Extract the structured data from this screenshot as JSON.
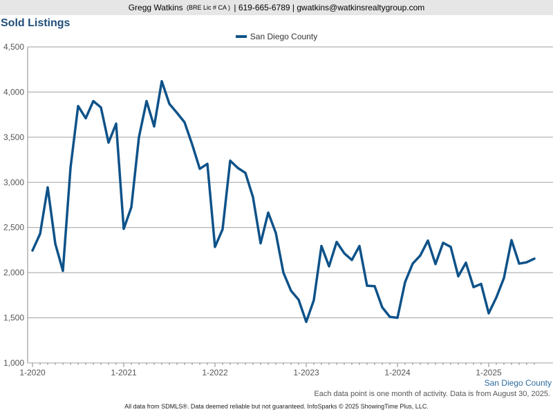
{
  "header": {
    "name": "Gregg Watkins",
    "license": "(BRE Lic # CA )",
    "separator1": "|",
    "phone": "619-665-6789",
    "separator2": "|",
    "email": "gwatkins@watkinsrealtygroup.com"
  },
  "colors": {
    "series": "#0e5289",
    "title": "#1f4e79",
    "grid": "#a0a0a0",
    "header_bg": "#e6e6e6"
  },
  "chart_data": {
    "type": "line",
    "title": "Sold Listings",
    "xlabel": "",
    "ylabel": "",
    "ylim": [
      1000,
      4500
    ],
    "yticks": [
      "1,000",
      "1,500",
      "2,000",
      "2,500",
      "3,000",
      "3,500",
      "4,000",
      "4,500"
    ],
    "xtick_labels": [
      "1-2020",
      "1-2021",
      "1-2022",
      "1-2023",
      "1-2024",
      "1-2025"
    ],
    "x_start": "2020-01",
    "x_end": "2025-07",
    "grid": true,
    "legend_position": "top-center",
    "series_label_position": "bottom-right",
    "series": [
      {
        "name": "San Diego County",
        "values": [
          2245,
          2430,
          2945,
          2320,
          2020,
          3160,
          3845,
          3710,
          3900,
          3830,
          3440,
          3650,
          2485,
          2725,
          3500,
          3900,
          3620,
          4120,
          3870,
          3770,
          3665,
          3420,
          3150,
          3205,
          2285,
          2480,
          3240,
          3160,
          3105,
          2835,
          2325,
          2665,
          2440,
          2000,
          1800,
          1700,
          1455,
          1695,
          2295,
          2070,
          2340,
          2215,
          2140,
          2295,
          1855,
          1850,
          1615,
          1510,
          1500,
          1895,
          2100,
          2190,
          2355,
          2095,
          2330,
          2285,
          1960,
          2110,
          1840,
          1875,
          1550,
          1725,
          1940,
          2360,
          2100,
          2115,
          2155
        ]
      }
    ]
  },
  "legend": {
    "label": "San Diego County"
  },
  "series_label": "San Diego County",
  "footnote": "Each data point is one month of activity. Data is from August 30, 2025.",
  "footer": "All data from SDMLS®. Data deemed reliable but not guaranteed. InfoSparks © 2025 ShowingTime Plus, LLC."
}
